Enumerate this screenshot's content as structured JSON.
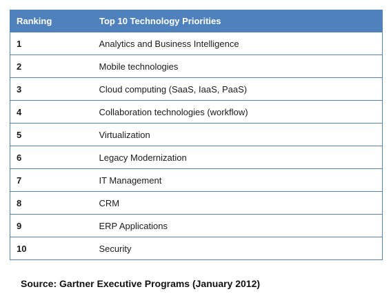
{
  "table": {
    "headers": [
      "Ranking",
      "Top 10 Technology Priorities"
    ],
    "rows": [
      {
        "rank": "1",
        "priority": "Analytics and Business Intelligence"
      },
      {
        "rank": "2",
        "priority": "Mobile technologies"
      },
      {
        "rank": "3",
        "priority": "Cloud computing (SaaS, IaaS, PaaS)"
      },
      {
        "rank": "4",
        "priority": "Collaboration technologies (workflow)"
      },
      {
        "rank": "5",
        "priority": "Virtualization"
      },
      {
        "rank": "6",
        "priority": "Legacy Modernization"
      },
      {
        "rank": "7",
        "priority": "IT Management"
      },
      {
        "rank": "8",
        "priority": "CRM"
      },
      {
        "rank": "9",
        "priority": "ERP Applications"
      },
      {
        "rank": "10",
        "priority": "Security"
      }
    ]
  },
  "source": "Source: Gartner Executive Programs (January 2012)",
  "colors": {
    "header_bg": "#4f81bd",
    "header_text": "#ffffff",
    "row_border": "#4f81bd"
  }
}
